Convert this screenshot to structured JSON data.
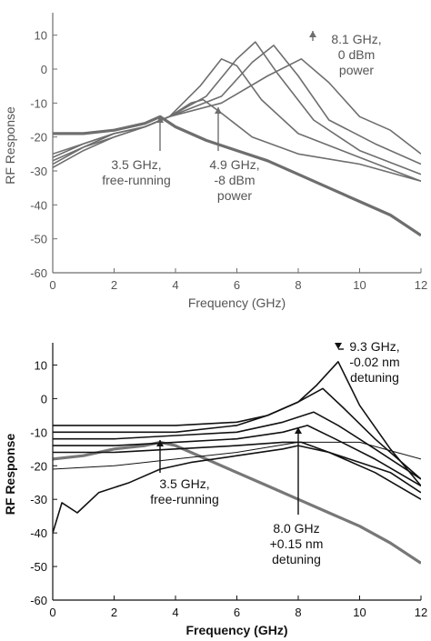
{
  "chart_data": [
    {
      "type": "line",
      "xlabel": "Frequency (GHz)",
      "ylabel": "RF Response",
      "xlim": [
        0,
        12
      ],
      "ylim": [
        -60,
        15
      ],
      "xticks": [
        0,
        2,
        4,
        6,
        8,
        10,
        12
      ],
      "yticks": [
        10,
        0,
        -10,
        -20,
        -30,
        -40,
        -50,
        -60
      ],
      "grid": false,
      "series": [
        {
          "x": [
            0,
            1,
            2,
            3,
            3.5,
            4,
            5,
            6,
            7,
            8,
            9,
            10,
            11,
            12
          ],
          "values": [
            -19,
            -19,
            -18,
            -16,
            -14,
            -17,
            -21,
            -24,
            -27,
            -31,
            -35,
            -39,
            -43,
            -49
          ]
        },
        {
          "x": [
            0,
            1,
            2,
            3,
            3.8,
            4.5,
            4.9,
            5.5,
            6.5,
            8,
            10,
            12
          ],
          "values": [
            -29,
            -24,
            -20,
            -17,
            -14,
            -10,
            -9,
            -13,
            -20,
            -25,
            -28,
            -33
          ]
        },
        {
          "x": [
            0,
            1,
            2,
            3,
            3.8,
            4.8,
            5.5,
            6,
            6.8,
            8,
            10,
            12
          ],
          "values": [
            -28,
            -23,
            -20,
            -17,
            -14,
            -5,
            3,
            1,
            -9,
            -19,
            -26,
            -33
          ]
        },
        {
          "x": [
            0,
            1,
            2,
            3,
            3.8,
            5,
            6,
            6.6,
            7.3,
            8.5,
            10,
            12
          ],
          "values": [
            -27,
            -23,
            -19,
            -17,
            -14,
            -8,
            3,
            8,
            -1,
            -15,
            -24,
            -31
          ]
        },
        {
          "x": [
            0,
            1,
            2,
            3,
            3.8,
            5.5,
            6.5,
            7.2,
            8,
            9,
            10.5,
            12
          ],
          "values": [
            -26,
            -22,
            -19,
            -17,
            -14,
            -8,
            2,
            7,
            -2,
            -15,
            -22,
            -28
          ]
        },
        {
          "x": [
            0,
            1,
            2,
            3,
            3.8,
            5.5,
            7,
            8.1,
            9,
            10,
            11,
            12
          ],
          "values": [
            -25,
            -22,
            -19,
            -17,
            -14,
            -10,
            -2,
            3,
            -4,
            -14,
            -18,
            -25
          ]
        }
      ],
      "annotations": [
        {
          "text": [
            "8.1 GHz,",
            "0 dBm",
            "power"
          ],
          "x": 8.1,
          "y": 3
        },
        {
          "text": [
            "3.5 GHz,",
            "free-running"
          ],
          "x": 3.5,
          "y": -14
        },
        {
          "text": [
            "4.9 GHz,",
            "-8 dBm",
            "power"
          ],
          "x": 5.4,
          "y": -10
        }
      ]
    },
    {
      "type": "line",
      "xlabel": "Frequency (GHz)",
      "ylabel": "RF Response",
      "xlim": [
        0,
        12
      ],
      "ylim": [
        -60,
        15
      ],
      "xticks": [
        0,
        2,
        4,
        6,
        8,
        10,
        12
      ],
      "yticks": [
        10,
        0,
        -10,
        -20,
        -30,
        -40,
        -50,
        -60
      ],
      "grid": false,
      "series": [
        {
          "x": [
            0,
            1,
            2,
            3,
            3.5,
            4,
            5,
            6,
            7,
            8,
            9,
            10,
            11,
            12
          ],
          "values": [
            -18,
            -17,
            -15,
            -14,
            -13,
            -14,
            -18,
            -22,
            -26,
            -30,
            -34,
            -38,
            -43,
            -49
          ]
        },
        {
          "x": [
            0,
            2,
            4,
            6,
            7,
            8,
            8.6,
            9.3,
            10,
            11,
            12
          ],
          "values": [
            -8,
            -8,
            -8,
            -7,
            -5,
            -1,
            4,
            11,
            -2,
            -15,
            -26
          ]
        },
        {
          "x": [
            0,
            2,
            4,
            6,
            7,
            8,
            8.8,
            9.5,
            10.5,
            12
          ],
          "values": [
            -10,
            -10,
            -10,
            -8,
            -5,
            -1,
            3,
            -3,
            -12,
            -24
          ]
        },
        {
          "x": [
            0,
            2,
            4,
            6,
            7.5,
            8.5,
            9.3,
            10.5,
            12
          ],
          "values": [
            -12,
            -12,
            -11,
            -10,
            -7,
            -4,
            -8,
            -15,
            -24
          ]
        },
        {
          "x": [
            0,
            2,
            4,
            6,
            7.5,
            8.3,
            9.2,
            10.5,
            12
          ],
          "values": [
            -14,
            -14,
            -13,
            -12,
            -10,
            -8,
            -12,
            -18,
            -26
          ]
        },
        {
          "x": [
            0,
            2,
            4,
            6,
            7.5,
            8.1,
            9,
            10.5,
            12
          ],
          "values": [
            -16,
            -16,
            -15,
            -14,
            -13,
            -13,
            -16,
            -22,
            -30
          ]
        },
        {
          "x": [
            0,
            0.3,
            0.8,
            1.5,
            2.5,
            3.5,
            4.5,
            6,
            7.5,
            8,
            9,
            11,
            12
          ],
          "values": [
            -40,
            -31,
            -34,
            -28,
            -25,
            -21,
            -19,
            -17,
            -15,
            -14,
            -16,
            -22,
            -28
          ]
        },
        {
          "x": [
            0,
            2,
            4,
            6,
            8,
            10,
            12
          ],
          "values": [
            -21,
            -20,
            -18,
            -16,
            -13,
            -13,
            -18
          ]
        }
      ],
      "annotations": [
        {
          "text": [
            "9.3 GHz,",
            "-0.02 nm",
            "detuning"
          ],
          "x": 9.3,
          "y": 11
        },
        {
          "text": [
            "3.5 GHz,",
            "free-running"
          ],
          "x": 3.5,
          "y": -13
        },
        {
          "text": [
            "8.0 GHz",
            "+0.15 nm",
            "detuning"
          ],
          "x": 8.0,
          "y": -14
        }
      ]
    }
  ]
}
